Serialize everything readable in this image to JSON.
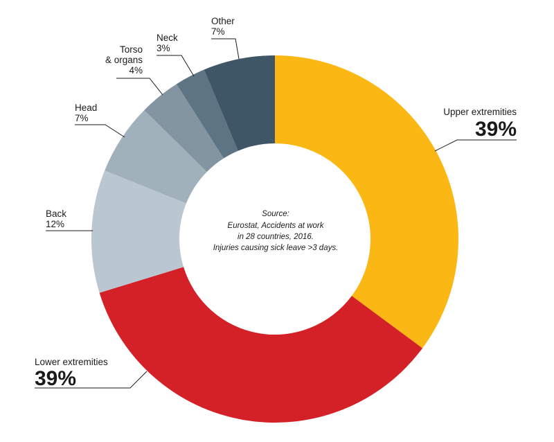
{
  "chart_data": {
    "type": "pie",
    "style": "donut",
    "slices": [
      {
        "name": "Upper extremities",
        "value_label": "39%",
        "value": 39,
        "color": "#FBB714"
      },
      {
        "name": "Lower extremities",
        "value_label": "39%",
        "value": 39,
        "color": "#D42127"
      },
      {
        "name": "Back",
        "value_label": "12%",
        "value": 12,
        "color": "#BAC7D0"
      },
      {
        "name": "Head",
        "value_label": "7%",
        "value": 7,
        "color": "#A1B1BC"
      },
      {
        "name": "Torso\n& organs",
        "value_label": "4%",
        "value": 4,
        "color": "#8495A2"
      },
      {
        "name": "Neck",
        "value_label": "3%",
        "value": 3,
        "color": "#5E7482"
      },
      {
        "name": "Other",
        "value_label": "7%",
        "value": 7,
        "color": "#3F5666"
      }
    ],
    "source_note": [
      "Source:",
      "Eurostat, Accidents at work",
      "in 28 countries, 2016.",
      "Injuries causing sick leave >3 days."
    ]
  }
}
